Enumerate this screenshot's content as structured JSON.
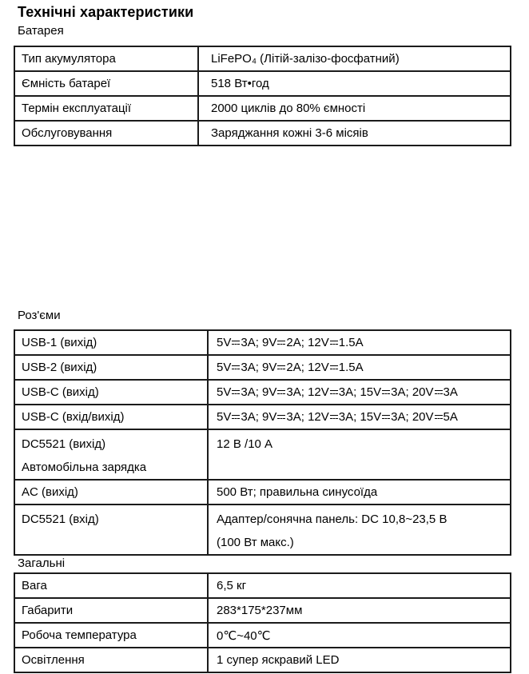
{
  "page": {
    "title": "Технічні характеристики"
  },
  "colors": {
    "page_background": "#ffffff",
    "text": "#000000",
    "table_border": "#1b1b1b"
  },
  "sections": {
    "battery": {
      "label": "Батарея",
      "rows": [
        {
          "name": "Тип акумулятора",
          "value": "LiFePO₄ (Літій-залізо-фосфатний)"
        },
        {
          "name": "Ємність батареї",
          "value": "518 Вт•год"
        },
        {
          "name": "Термін експлуатації",
          "value": "2000 циклів до 80% ємності"
        },
        {
          "name": "Обслуговування",
          "value": "Заряджання кожні 3-6 місяів"
        }
      ]
    },
    "connectors": {
      "label": "Роз'єми",
      "rows": [
        {
          "name": "USB-1 (вихід)",
          "value": "5V⎓3A; 9V⎓2A; 12V⎓1.5A"
        },
        {
          "name": "USB-2 (вихід)",
          "value": "5V⎓3A; 9V⎓2A; 12V⎓1.5A"
        },
        {
          "name": "USB-C (вихід)",
          "value": "5V⎓3A; 9V⎓3A; 12V⎓3A; 15V⎓3A; 20V⎓3A"
        },
        {
          "name": "USB-C (вхід/вихід)",
          "value": "5V⎓3A; 9V⎓3A; 12V⎓3A; 15V⎓3A; 20V⎓5A"
        },
        {
          "name": "DC5521 (вихід)",
          "name2": "Автомобільна зарядка",
          "value": "12 В /10 А"
        },
        {
          "name": "AC (вихід)",
          "value": "500 Вт; правильна синусоїда"
        },
        {
          "name": "DC5521 (вхід)",
          "value": "Адаптер/сонячна панель: DC 10,8~23,5 В",
          "value2": "(100 Вт макс.)"
        }
      ]
    },
    "general": {
      "label": "Загальні",
      "rows": [
        {
          "name": "Вага",
          "value": "6,5 кг"
        },
        {
          "name": "Габарити",
          "value": "283*175*237мм"
        },
        {
          "name": "Робоча температура",
          "value": "0℃~40℃"
        },
        {
          "name": "Освітлення",
          "value": "1 супер яскравий LED"
        }
      ]
    }
  }
}
